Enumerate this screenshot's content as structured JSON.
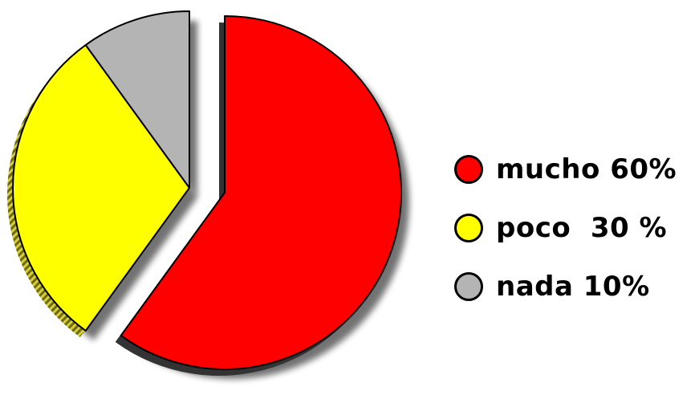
{
  "chart_data": {
    "type": "pie",
    "title": "",
    "exploded": true,
    "style": "3d-shadow",
    "legend_position": "right",
    "slices": [
      {
        "label": "mucho",
        "value": 60,
        "legend_text": "mucho 60%",
        "color": "#ff0000"
      },
      {
        "label": "poco",
        "value": 30,
        "legend_text": "poco  30 %",
        "color": "#ffff00"
      },
      {
        "label": "nada",
        "value": 10,
        "legend_text": "nada 10%",
        "color": "#b4b4b4"
      }
    ]
  }
}
